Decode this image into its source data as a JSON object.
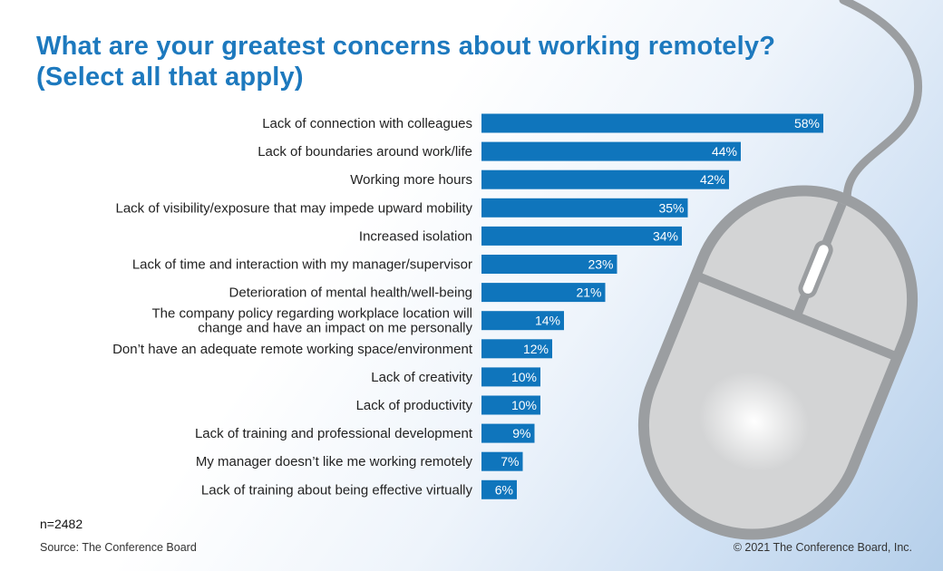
{
  "title_line1": "What are your greatest concerns about working remotely?",
  "title_line2": "(Select all that apply)",
  "sample_size": "n=2482",
  "source": "Source: The Conference Board",
  "copyright": "© 2021 The Conference Board, Inc.",
  "colors": {
    "title": "#1d79be",
    "bar": "#0f75bc",
    "mouse": "#9b9ea1",
    "mouse_fill": "#d3d4d5"
  },
  "decoration": "computer-mouse-illustration",
  "chart_data": {
    "type": "bar",
    "orientation": "horizontal",
    "categories": [
      [
        "Lack of connection with colleagues"
      ],
      [
        "Lack of boundaries around work/life"
      ],
      [
        "Working more hours"
      ],
      [
        "Lack of visibility/exposure that may impede upward mobility"
      ],
      [
        "Increased isolation"
      ],
      [
        "Lack of time and interaction with my manager/supervisor"
      ],
      [
        "Deterioration of mental health/well-being"
      ],
      [
        "The company policy regarding workplace location will",
        "change and have an impact on me personally"
      ],
      [
        "Don’t have an adequate remote working space/environment"
      ],
      [
        "Lack of creativity"
      ],
      [
        "Lack of productivity"
      ],
      [
        "Lack of training and professional development"
      ],
      [
        "My manager doesn’t like me working remotely"
      ],
      [
        "Lack of training about being effective virtually"
      ]
    ],
    "values": [
      58,
      44,
      42,
      35,
      34,
      23,
      21,
      14,
      12,
      10,
      10,
      9,
      7,
      6
    ],
    "value_labels": [
      "58%",
      "44%",
      "42%",
      "35%",
      "34%",
      "23%",
      "21%",
      "14%",
      "12%",
      "10%",
      "10%",
      "9%",
      "7%",
      "6%"
    ],
    "unit": "%",
    "grid": false
  }
}
